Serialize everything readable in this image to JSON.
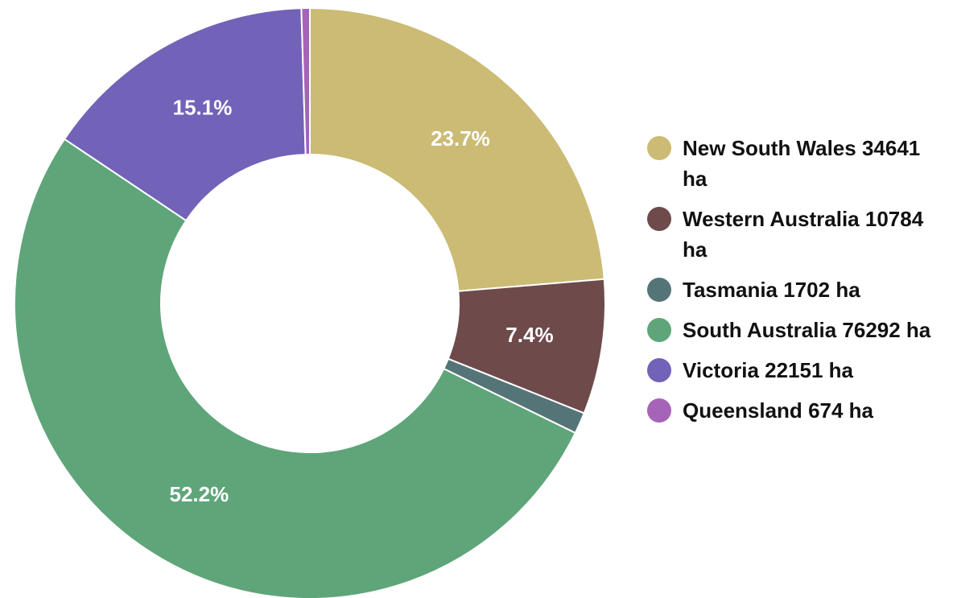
{
  "chart_data": {
    "type": "pie",
    "categories": [
      "New South Wales",
      "Western Australia",
      "Tasmania",
      "South Australia",
      "Victoria",
      "Queensland"
    ],
    "values": [
      34641,
      10784,
      1702,
      76292,
      22151,
      674
    ],
    "value_labels": [
      "34641 ha",
      "10784 ha",
      "1702 ha",
      "76292 ha",
      "22151 ha",
      "674 ha"
    ],
    "percent_labels": [
      "23.7%",
      "7.4%",
      null,
      "52.2%",
      "15.1%",
      null
    ],
    "colors": [
      "#cbbb74",
      "#6e4a4a",
      "#557478",
      "#5fa57a",
      "#7262b8",
      "#a564b8"
    ],
    "donut": true,
    "legend": "right"
  }
}
